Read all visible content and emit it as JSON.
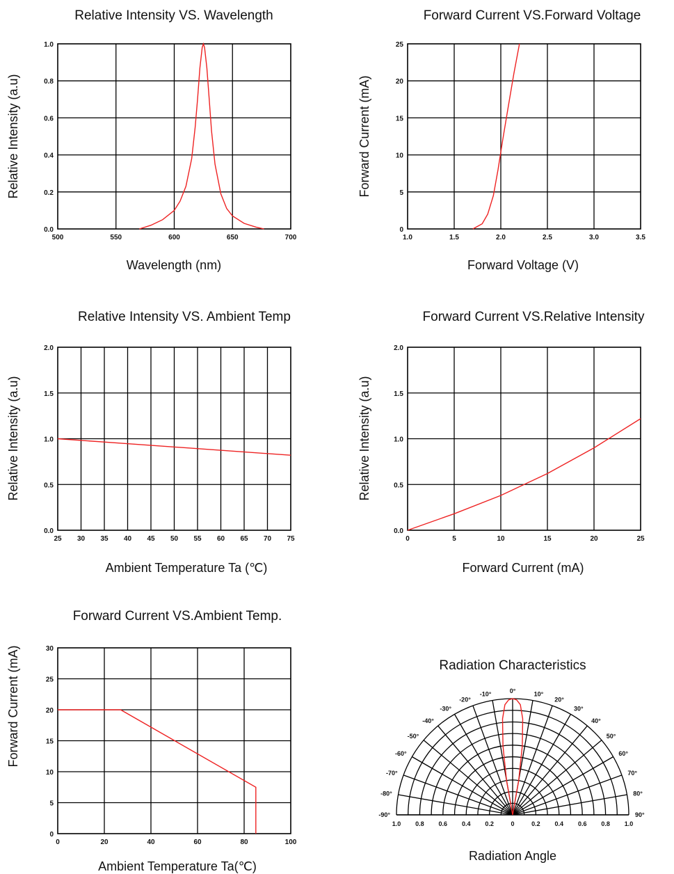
{
  "colors": {
    "curve": "#ee2222",
    "grid": "#000000",
    "background": "#ffffff"
  },
  "chart_data": [
    {
      "type": "line",
      "title": "Relative Intensity VS. Wavelength",
      "xlabel": "Wavelength (nm)",
      "ylabel": "Relative Intensity (a.u)",
      "xlim": [
        500,
        700
      ],
      "ylim": [
        0,
        1.0
      ],
      "xticks": [
        "500",
        "550",
        "600",
        "650",
        "700"
      ],
      "yticks": [
        "0.0",
        "0.2",
        "0.4",
        "0.6",
        "0.8",
        "1.0"
      ],
      "grid": true,
      "series": [
        {
          "x": [
            570,
            580,
            590,
            600,
            605,
            610,
            615,
            618,
            620,
            622,
            624,
            625,
            626,
            628,
            630,
            632,
            635,
            640,
            645,
            650,
            660,
            670,
            677
          ],
          "y": [
            0.0,
            0.02,
            0.05,
            0.1,
            0.15,
            0.23,
            0.38,
            0.55,
            0.7,
            0.87,
            0.98,
            1.0,
            0.98,
            0.87,
            0.7,
            0.53,
            0.35,
            0.19,
            0.11,
            0.07,
            0.03,
            0.01,
            0.0
          ]
        }
      ]
    },
    {
      "type": "line",
      "title": "Forward Current VS.Forward Voltage",
      "xlabel": "Forward Voltage (V)",
      "ylabel": "Forward Current (mA)",
      "xlim": [
        1.0,
        3.5
      ],
      "ylim": [
        0,
        25
      ],
      "xticks": [
        "1.0",
        "1.5",
        "2.0",
        "2.5",
        "3.0",
        "3.5"
      ],
      "yticks": [
        "0",
        "5",
        "10",
        "15",
        "20",
        "25"
      ],
      "grid": true,
      "series": [
        {
          "x": [
            1.7,
            1.8,
            1.86,
            1.92,
            1.97,
            2.02,
            2.08,
            2.14,
            2.2
          ],
          "y": [
            0.0,
            0.7,
            2.0,
            4.5,
            8.0,
            12.0,
            16.5,
            21.0,
            25.0
          ]
        }
      ]
    },
    {
      "type": "line",
      "title": "Relative Intensity VS. Ambient Temp",
      "xlabel": "Ambient Temperature Ta (℃)",
      "ylabel": "Relative Intensity (a.u)",
      "xlim": [
        25,
        75
      ],
      "ylim": [
        0,
        2.0
      ],
      "xticks": [
        "25",
        "30",
        "35",
        "40",
        "45",
        "50",
        "55",
        "60",
        "65",
        "70",
        "75"
      ],
      "yticks": [
        "0.0",
        "0.5",
        "1.0",
        "1.5",
        "2.0"
      ],
      "grid": true,
      "series": [
        {
          "x": [
            25,
            75
          ],
          "y": [
            1.0,
            0.82
          ]
        }
      ]
    },
    {
      "type": "line",
      "title": "Forward Current VS.Relative Intensity",
      "xlabel": "Forward Current (mA)",
      "ylabel": "Relative Intensity (a.u)",
      "xlim": [
        0,
        25
      ],
      "ylim": [
        0,
        2.0
      ],
      "xticks": [
        "0",
        "5",
        "10",
        "15",
        "20",
        "25"
      ],
      "yticks": [
        "0.0",
        "0.5",
        "1.0",
        "1.5",
        "2.0"
      ],
      "grid": true,
      "series": [
        {
          "x": [
            0,
            5,
            10,
            15,
            20,
            25
          ],
          "y": [
            0.0,
            0.18,
            0.38,
            0.62,
            0.9,
            1.22
          ]
        }
      ]
    },
    {
      "type": "line",
      "title": "Forward Current VS.Ambient Temp.",
      "xlabel": "Ambient Temperature Ta(℃)",
      "ylabel": "Forward Current (mA)",
      "xlim": [
        0,
        100
      ],
      "ylim": [
        0,
        30
      ],
      "xticks": [
        "0",
        "20",
        "40",
        "60",
        "80",
        "100"
      ],
      "yticks": [
        "0",
        "5",
        "10",
        "15",
        "20",
        "25",
        "30"
      ],
      "grid": true,
      "series": [
        {
          "x": [
            0,
            27,
            85,
            85
          ],
          "y": [
            20,
            20,
            7.5,
            0
          ]
        }
      ]
    },
    {
      "type": "polar",
      "title": "Radiation Characteristics",
      "xlabel": "Radiation Angle",
      "angle_labels": [
        "-90°",
        "-80°",
        "-70°",
        "-60°",
        "-50°",
        "-40°",
        "-30°",
        "-20°",
        "-10°",
        "0°",
        "10°",
        "20°",
        "30°",
        "40°",
        "50°",
        "60°",
        "70°",
        "80°",
        "90°"
      ],
      "radial_labels": [
        "1.0",
        "0.8",
        "0.6",
        "0.4",
        "0.2",
        "0",
        "0.2",
        "0.4",
        "0.6",
        "0.8",
        "1.0"
      ],
      "series": [
        {
          "angle": [
            -12,
            -10,
            -8,
            -6,
            -4,
            -2,
            0,
            2,
            4,
            6,
            8,
            10,
            12
          ],
          "r": [
            0.0,
            0.3,
            0.6,
            0.83,
            0.95,
            0.99,
            1.0,
            0.99,
            0.95,
            0.83,
            0.6,
            0.3,
            0.0
          ]
        }
      ]
    }
  ]
}
